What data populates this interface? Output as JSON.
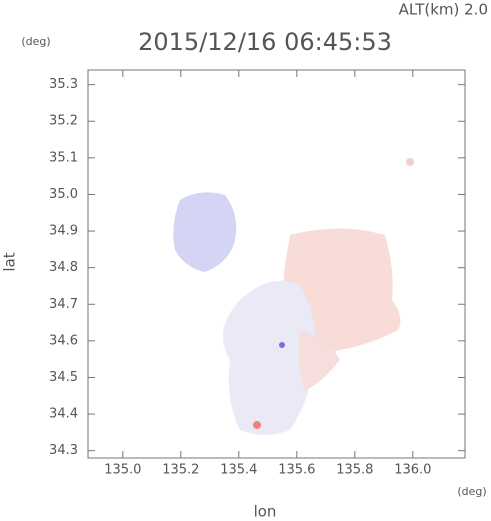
{
  "chart_data": {
    "type": "map",
    "title": "2015/12/16 06:45:53",
    "subtitle": "ALT(km) 2.0",
    "xlabel": "lon",
    "ylabel": "lat",
    "x_unit": "(deg)",
    "y_unit": "(deg)",
    "xlim": [
      134.88,
      136.18
    ],
    "ylim": [
      34.28,
      35.34
    ],
    "xticks": [
      {
        "value": 135,
        "label": "135.0"
      },
      135.2,
      135.4,
      135.6,
      135.8,
      {
        "value": 136,
        "label": "136.0"
      }
    ],
    "yticks": [
      34.3,
      34.4,
      34.5,
      34.6,
      34.7,
      34.8,
      34.9,
      {
        "value": 35,
        "label": "35.0"
      },
      35.1,
      35.2,
      35.3
    ]
  }
}
